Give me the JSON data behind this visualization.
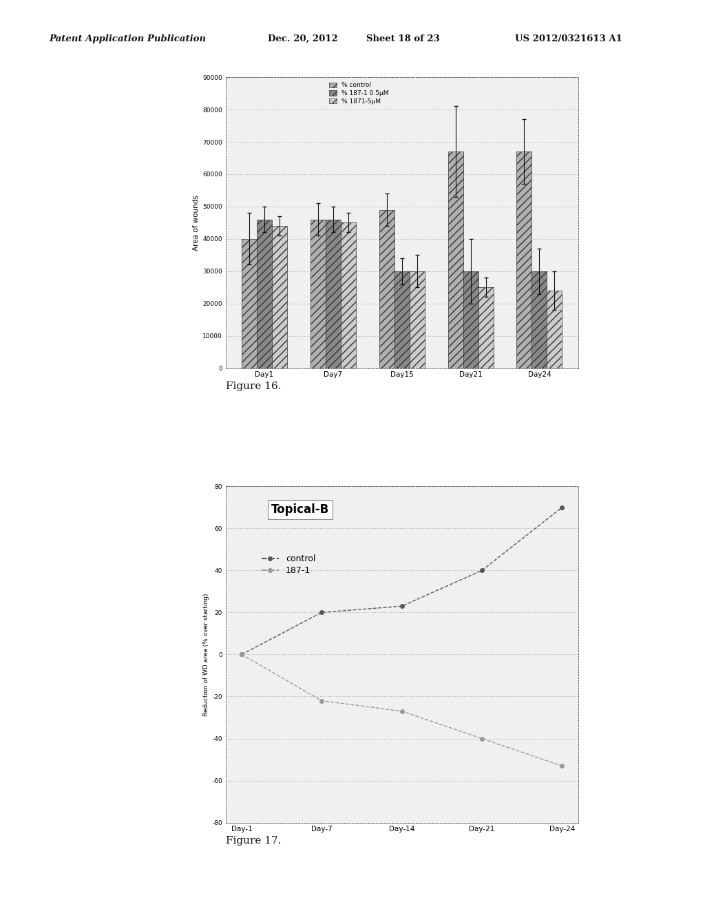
{
  "fig16": {
    "days": [
      "Day1",
      "Day7",
      "Day15",
      "Day21",
      "Day24"
    ],
    "groups": [
      "% control",
      "% 187-1 0.5μM",
      "% 1871-5μM"
    ],
    "bar_values": [
      [
        40000,
        46000,
        49000,
        67000,
        67000
      ],
      [
        46000,
        46000,
        30000,
        30000,
        30000
      ],
      [
        44000,
        45000,
        30000,
        25000,
        24000
      ]
    ],
    "bar_errors": [
      [
        8000,
        5000,
        5000,
        14000,
        10000
      ],
      [
        4000,
        4000,
        4000,
        10000,
        7000
      ],
      [
        3000,
        3000,
        5000,
        3000,
        6000
      ]
    ],
    "ylabel": "Area of wounds",
    "ylim": [
      0,
      90000
    ],
    "yticks": [
      0,
      10000,
      20000,
      30000,
      40000,
      50000,
      60000,
      70000,
      80000,
      90000
    ],
    "bar_width": 0.22,
    "hatch_patterns": [
      "///",
      "///",
      "///"
    ],
    "bar_facecolor": [
      "#b0b0b0",
      "#888888",
      "#cccccc"
    ],
    "edgecolor": "#333333"
  },
  "fig17": {
    "subtitle": "Topical-B",
    "days": [
      "Day-1",
      "Day-7",
      "Day-14",
      "Day-21",
      "Day-24"
    ],
    "control_values": [
      0,
      20,
      23,
      40,
      70
    ],
    "treat_values": [
      0,
      -22,
      -27,
      -40,
      -53
    ],
    "ylabel": "Reduction of WD area (% over starting)",
    "ylim": [
      -80,
      80
    ],
    "yticks": [
      -80,
      -60,
      -40,
      -20,
      0,
      20,
      40,
      60,
      80
    ],
    "legend": [
      "control",
      "187-1"
    ],
    "control_color": "#555555",
    "treat_color": "#999999",
    "grid_color": "#bbbbbb"
  },
  "page_header": {
    "left": "Patent Application Publication",
    "center_left": "Dec. 20, 2012",
    "center_right": "Sheet 18 of 23",
    "right": "US 2012/0321613 A1"
  },
  "background_color": "#ffffff",
  "chart_bg": "#f0f0f0",
  "fig16_caption": "Figure 16.",
  "fig17_caption": "Figure 17."
}
